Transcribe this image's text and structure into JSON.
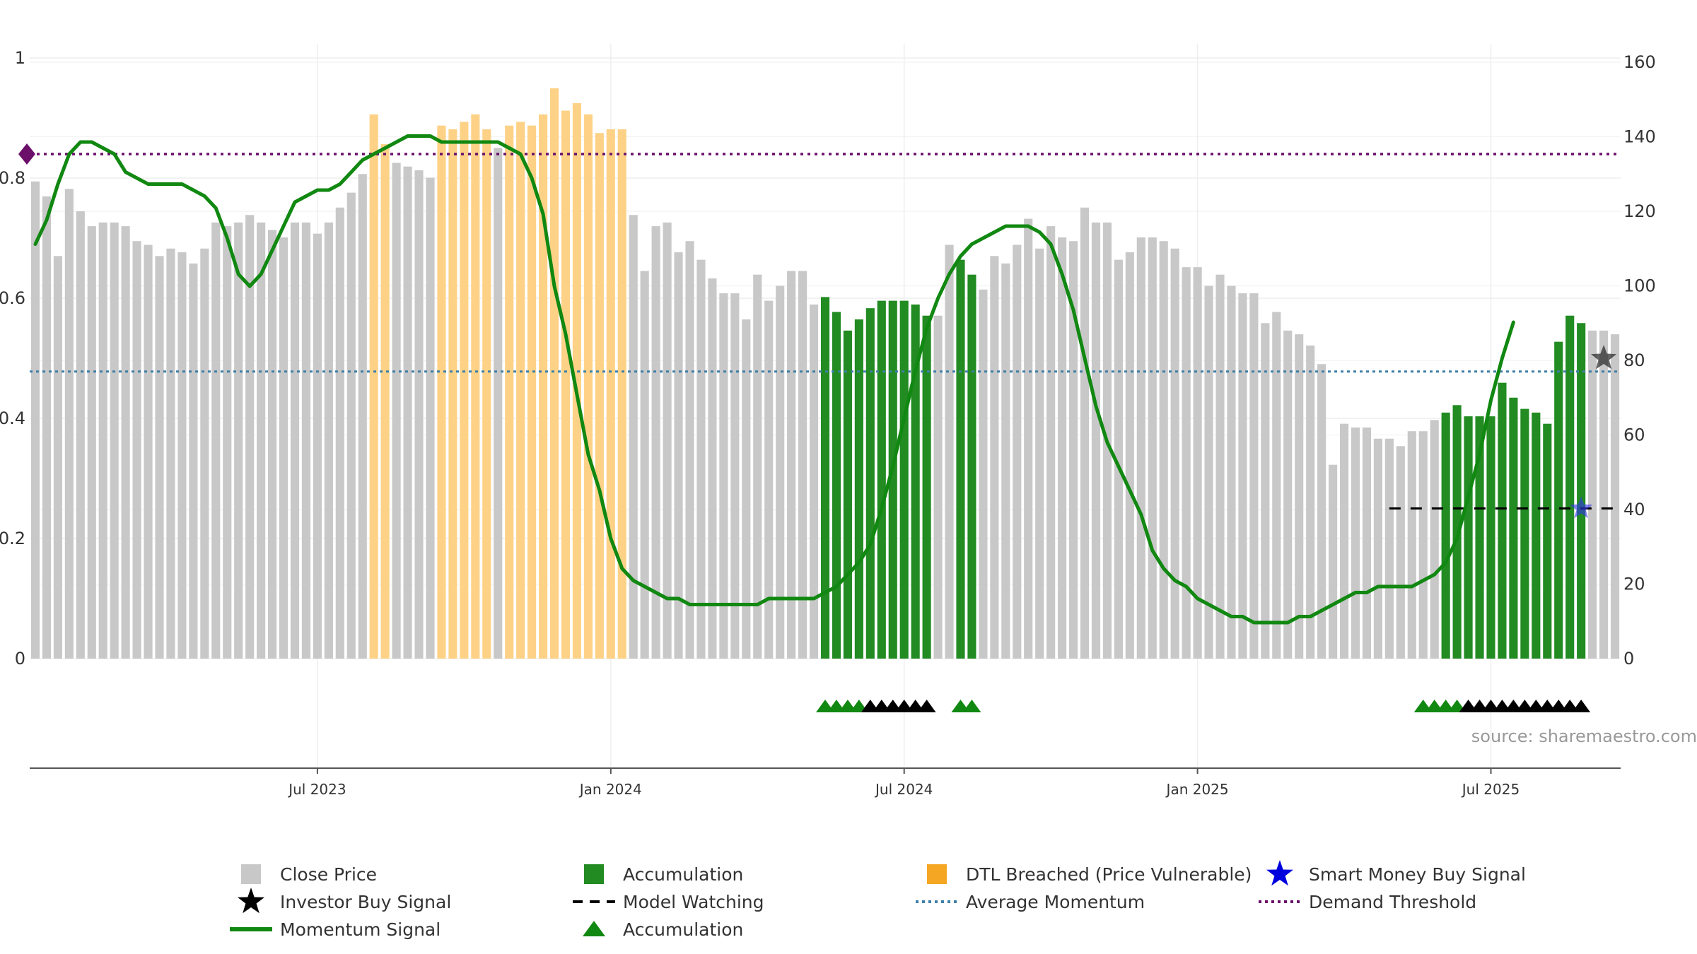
{
  "chart_data": {
    "type": "bar",
    "title": "",
    "source": "source: sharemaestro.com",
    "left_axis": {
      "ticks": [
        "0",
        "0.2",
        "0.4",
        "0.6",
        "0.8",
        "1"
      ],
      "range": [
        0,
        1
      ]
    },
    "right_axis": {
      "ticks": [
        "0",
        "20",
        "40",
        "60",
        "80",
        "100",
        "120",
        "140",
        "160"
      ],
      "range": [
        0,
        160
      ]
    },
    "x_ticks": [
      {
        "label": "Jul 2023",
        "week": 25
      },
      {
        "label": "Jan 2024",
        "week": 51
      },
      {
        "label": "Jul 2024",
        "week": 77
      },
      {
        "label": "Jan 2025",
        "week": 103
      },
      {
        "label": "Jul 2025",
        "week": 129
      }
    ],
    "colors": {
      "close": "#c8c8c8",
      "accumulation": "#228b22",
      "dtl": "#fdd287",
      "momentum": "#118811",
      "threshold": "#6b0f6b",
      "average": "#3f7fa8",
      "smart_money": "#3333ee",
      "investor": "#222222",
      "marker_green": "#118811",
      "marker_black": "#000000"
    },
    "close_price": [
      128,
      124,
      108,
      126,
      120,
      116,
      117,
      117,
      116,
      112,
      111,
      108,
      110,
      109,
      106,
      110,
      117,
      116,
      117,
      119,
      117,
      115,
      113,
      117,
      117,
      114,
      117,
      121,
      125,
      130,
      146,
      138,
      133,
      132,
      131,
      129,
      143,
      142,
      144,
      146,
      142,
      137,
      143,
      144,
      143,
      146,
      153,
      147,
      149,
      146,
      141,
      142,
      142,
      119,
      104,
      116,
      117,
      109,
      112,
      107,
      102,
      98,
      98,
      91,
      103,
      96,
      100,
      104,
      104,
      95,
      97,
      93,
      88,
      91,
      94,
      96,
      96,
      96,
      95,
      92,
      92,
      111,
      107,
      103,
      99,
      108,
      106,
      111,
      118,
      110,
      116,
      113,
      112,
      121,
      117,
      117,
      107,
      109,
      113,
      113,
      112,
      110,
      105,
      105,
      100,
      103,
      100,
      98,
      98,
      90,
      93,
      88,
      87,
      84,
      79,
      52,
      63,
      62,
      62,
      59,
      59,
      57,
      61,
      61,
      64,
      66,
      68,
      65,
      65,
      65,
      74,
      70,
      67,
      66,
      63,
      85,
      92,
      90,
      88,
      88,
      87
    ],
    "bar_category": [
      "c",
      "c",
      "c",
      "c",
      "c",
      "c",
      "c",
      "c",
      "c",
      "c",
      "c",
      "c",
      "c",
      "c",
      "c",
      "c",
      "c",
      "c",
      "c",
      "c",
      "c",
      "c",
      "c",
      "c",
      "c",
      "c",
      "c",
      "c",
      "c",
      "c",
      "d",
      "d",
      "c",
      "c",
      "c",
      "c",
      "d",
      "d",
      "d",
      "d",
      "d",
      "c",
      "d",
      "d",
      "d",
      "d",
      "d",
      "d",
      "d",
      "d",
      "d",
      "d",
      "d",
      "c",
      "c",
      "c",
      "c",
      "c",
      "c",
      "c",
      "c",
      "c",
      "c",
      "c",
      "c",
      "c",
      "c",
      "c",
      "c",
      "c",
      "a",
      "a",
      "a",
      "a",
      "a",
      "a",
      "a",
      "a",
      "a",
      "a",
      "c",
      "c",
      "a",
      "a",
      "c",
      "c",
      "c",
      "c",
      "c",
      "c",
      "c",
      "c",
      "c",
      "c",
      "c",
      "c",
      "c",
      "c",
      "c",
      "c",
      "c",
      "c",
      "c",
      "c",
      "c",
      "c",
      "c",
      "c",
      "c",
      "c",
      "c",
      "c",
      "c",
      "c",
      "c",
      "c",
      "c",
      "c",
      "c",
      "c",
      "c",
      "c",
      "c",
      "c",
      "c",
      "a",
      "a",
      "a",
      "a",
      "a",
      "a",
      "a",
      "a",
      "a",
      "a",
      "a",
      "a",
      "a",
      "c",
      "c",
      "c"
    ],
    "momentum": [
      0.69,
      0.73,
      0.79,
      0.84,
      0.86,
      0.86,
      0.85,
      0.84,
      0.81,
      0.8,
      0.79,
      0.79,
      0.79,
      0.79,
      0.78,
      0.77,
      0.75,
      0.7,
      0.64,
      0.62,
      0.64,
      0.68,
      0.72,
      0.76,
      0.77,
      0.78,
      0.78,
      0.79,
      0.81,
      0.83,
      0.84,
      0.85,
      0.86,
      0.87,
      0.87,
      0.87,
      0.86,
      0.86,
      0.86,
      0.86,
      0.86,
      0.86,
      0.85,
      0.84,
      0.8,
      0.74,
      0.62,
      0.54,
      0.44,
      0.34,
      0.28,
      0.2,
      0.15,
      0.13,
      0.12,
      0.11,
      0.1,
      0.1,
      0.09,
      0.09,
      0.09,
      0.09,
      0.09,
      0.09,
      0.09,
      0.1,
      0.1,
      0.1,
      0.1,
      0.1,
      0.11,
      0.12,
      0.14,
      0.16,
      0.19,
      0.25,
      0.32,
      0.4,
      0.48,
      0.55,
      0.6,
      0.64,
      0.67,
      0.69,
      0.7,
      0.71,
      0.72,
      0.72,
      0.72,
      0.71,
      0.69,
      0.64,
      0.58,
      0.5,
      0.42,
      0.36,
      0.32,
      0.28,
      0.24,
      0.18,
      0.15,
      0.13,
      0.12,
      0.1,
      0.09,
      0.08,
      0.07,
      0.07,
      0.06,
      0.06,
      0.06,
      0.06,
      0.07,
      0.07,
      0.08,
      0.09,
      0.1,
      0.11,
      0.11,
      0.12,
      0.12,
      0.12,
      0.12,
      0.13,
      0.14,
      0.16,
      0.2,
      0.27,
      0.34,
      0.43,
      0.5,
      0.56
    ],
    "demand_threshold": 0.84,
    "average_momentum": 0.478,
    "model_watching": {
      "start_week": 120,
      "end_week": 138,
      "value": 0.25
    },
    "smart_money_buy": {
      "week": 137,
      "value": 0.25
    },
    "investor_buy": {
      "week": 139,
      "value": 0.5
    },
    "accumulation_markers": [
      {
        "week": 70,
        "color": "green"
      },
      {
        "week": 71,
        "color": "green"
      },
      {
        "week": 72,
        "color": "green"
      },
      {
        "week": 73,
        "color": "green"
      },
      {
        "week": 74,
        "color": "black"
      },
      {
        "week": 75,
        "color": "black"
      },
      {
        "week": 76,
        "color": "black"
      },
      {
        "week": 77,
        "color": "black"
      },
      {
        "week": 78,
        "color": "black"
      },
      {
        "week": 79,
        "color": "black"
      },
      {
        "week": 82,
        "color": "green"
      },
      {
        "week": 83,
        "color": "green"
      },
      {
        "week": 123,
        "color": "green"
      },
      {
        "week": 124,
        "color": "green"
      },
      {
        "week": 125,
        "color": "green"
      },
      {
        "week": 126,
        "color": "green"
      },
      {
        "week": 127,
        "color": "black"
      },
      {
        "week": 128,
        "color": "black"
      },
      {
        "week": 129,
        "color": "black"
      },
      {
        "week": 130,
        "color": "black"
      },
      {
        "week": 131,
        "color": "black"
      },
      {
        "week": 132,
        "color": "black"
      },
      {
        "week": 133,
        "color": "black"
      },
      {
        "week": 134,
        "color": "black"
      },
      {
        "week": 135,
        "color": "black"
      },
      {
        "week": 136,
        "color": "black"
      },
      {
        "week": 137,
        "color": "black"
      }
    ],
    "legend": [
      {
        "label": "Close Price",
        "icon": "square-grey"
      },
      {
        "label": "Accumulation",
        "icon": "square-green"
      },
      {
        "label": "DTL Breached (Price Vulnerable)",
        "icon": "square-orange"
      },
      {
        "label": "Smart Money Buy Signal",
        "icon": "star-blue"
      },
      {
        "label": "Investor Buy Signal",
        "icon": "star-black"
      },
      {
        "label": "Model Watching",
        "icon": "dash-black"
      },
      {
        "label": "Average Momentum",
        "icon": "dotted-blue"
      },
      {
        "label": "Demand Threshold",
        "icon": "dotted-purple"
      },
      {
        "label": "Momentum Signal",
        "icon": "line-green"
      },
      {
        "label": "Accumulation",
        "icon": "triangle-green"
      }
    ]
  }
}
